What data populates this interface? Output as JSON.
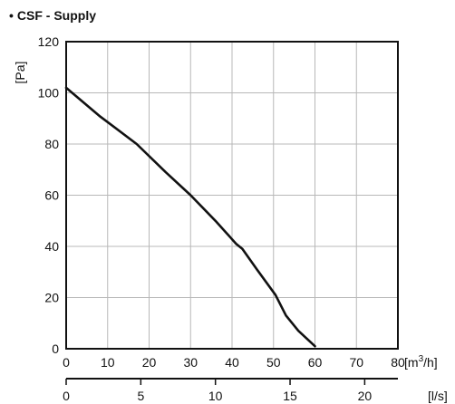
{
  "chart_data": {
    "type": "line",
    "title": "CSF - Supply",
    "title_bullet": "•",
    "ylabel": "[Pa]",
    "xlabel": "[m³/h]",
    "xlabel_base": "[m",
    "xlabel_sup": "3",
    "xlabel_tail": "/h]",
    "x2label": "[l/s]",
    "xlim": [
      0,
      80
    ],
    "ylim": [
      0,
      120
    ],
    "x_ticks": [
      0,
      10,
      20,
      30,
      40,
      50,
      60,
      70,
      80
    ],
    "y_ticks": [
      0,
      20,
      40,
      60,
      80,
      100,
      120
    ],
    "x2_ticks": [
      0,
      5,
      10,
      15,
      20
    ],
    "x2_per_x": 0.2778,
    "grid": true,
    "series": [
      {
        "x": [
          0,
          8,
          17,
          24,
          30,
          36,
          41,
          42.5,
          46,
          50.5,
          53,
          56,
          60
        ],
        "y": [
          102,
          91,
          80,
          69,
          60,
          50,
          41,
          39,
          31,
          21,
          13,
          7,
          1
        ]
      }
    ]
  }
}
